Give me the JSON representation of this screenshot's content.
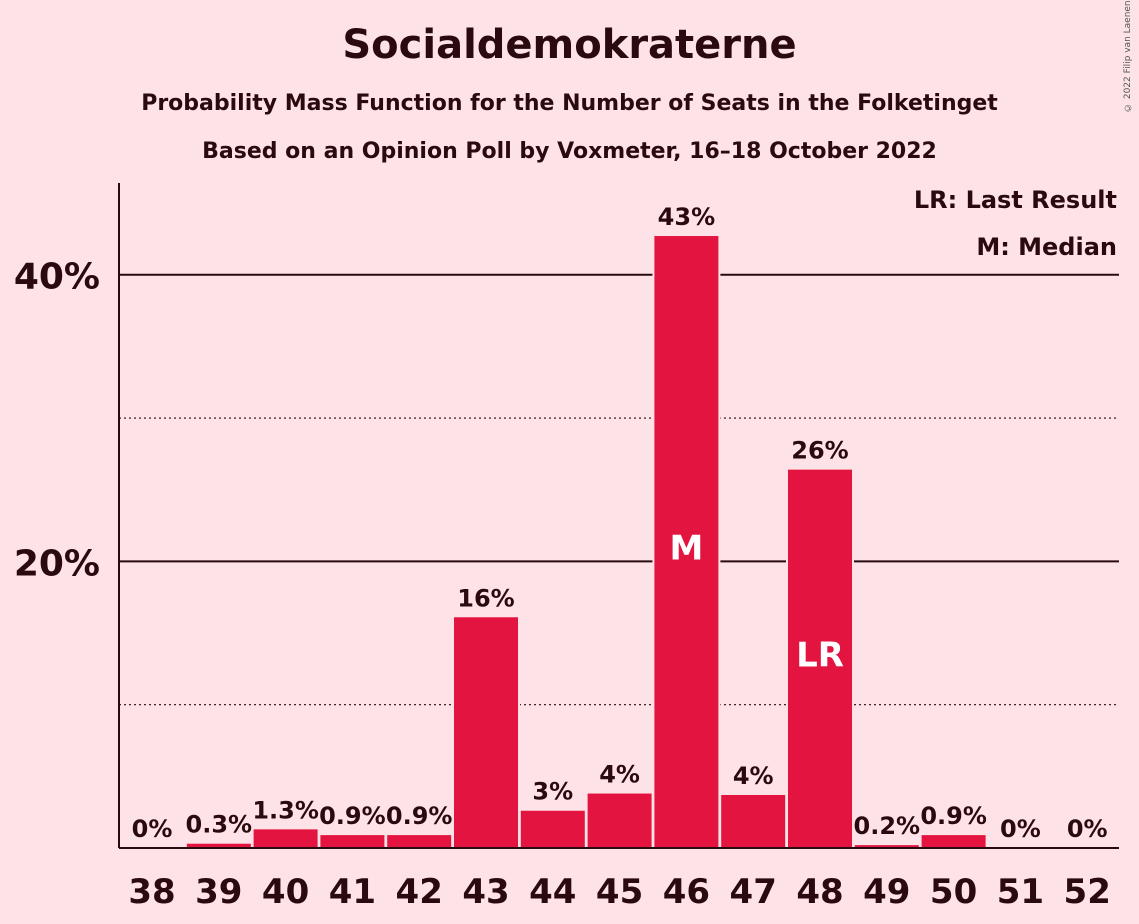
{
  "title": "Socialdemokraterne",
  "subtitle": "Probability Mass Function for the Number of Seats in the Folketinget",
  "subtitle2": "Based on an Opinion Poll by Voxmeter, 16–18 October 2022",
  "copyright": "© 2022 Filip van Laenen",
  "legend": {
    "last_result": "LR: Last Result",
    "median": "M: Median"
  },
  "colors": {
    "bar": "#e31540",
    "background": "#fde3e7",
    "text": "#2a0a0e"
  },
  "chart_data": {
    "type": "bar",
    "categories": [
      "38",
      "39",
      "40",
      "41",
      "42",
      "43",
      "44",
      "45",
      "46",
      "47",
      "48",
      "49",
      "50",
      "51",
      "52"
    ],
    "values": [
      0,
      0.3,
      1.3,
      0.9,
      0.9,
      16.1,
      2.6,
      3.8,
      42.7,
      3.7,
      26.4,
      0.2,
      0.9,
      0,
      0
    ],
    "data_labels": [
      "0%",
      "0.3%",
      "1.3%",
      "0.9%",
      "0.9%",
      "16%",
      "3%",
      "4%",
      "43%",
      "4%",
      "26%",
      "0.2%",
      "0.9%",
      "0%",
      "0%"
    ],
    "bar_markers": {
      "46": "M",
      "48": "LR"
    },
    "y_ticks": [
      20,
      40
    ],
    "y_tick_labels": [
      "20%",
      "40%"
    ],
    "y_minor_ticks": [
      10,
      30
    ],
    "ylim": [
      0,
      46.4
    ],
    "grid": true
  }
}
